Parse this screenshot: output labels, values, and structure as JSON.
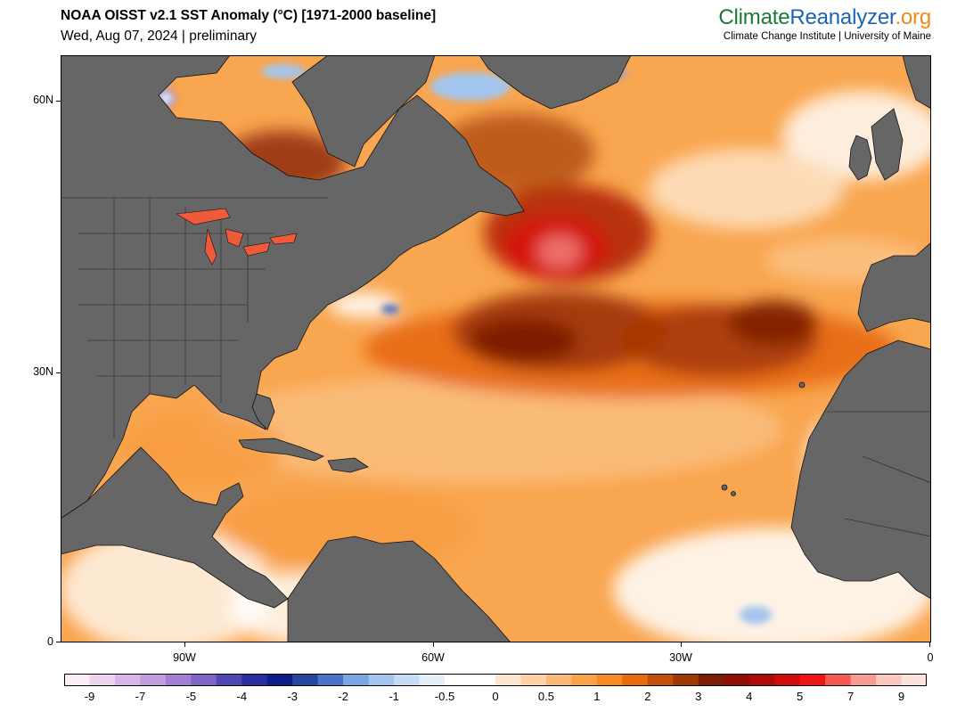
{
  "header": {
    "title": "NOAA OISST v2.1 SST Anomaly (°C) [1971-2000 baseline]",
    "subtitle": "Wed, Aug 07, 2024 | preliminary"
  },
  "brand": {
    "logo_part1": "Climate",
    "logo_part2": "Reanalyzer",
    "logo_part3": ".org",
    "tagline": "Climate Change Institute | University of Maine"
  },
  "map": {
    "region": "North Atlantic",
    "lat_labels": [
      "60N",
      "30N",
      "0"
    ],
    "lon_labels": [
      "90W",
      "60W",
      "30W",
      "0"
    ],
    "land_color": "#666666",
    "ocean_base_color": "#f7a04a"
  },
  "colorbar": {
    "labels": [
      "-9",
      "-7",
      "-5",
      "-4",
      "-3",
      "-2",
      "-1",
      "-0.5",
      "0",
      "0.5",
      "1",
      "2",
      "3",
      "4",
      "5",
      "7",
      "9"
    ],
    "colors": [
      "#fbeef6",
      "#ecd4ef",
      "#d8b7e8",
      "#c19ddf",
      "#a27fd3",
      "#7f64c6",
      "#5048b2",
      "#2b2f9e",
      "#0d1e8a",
      "#27469d",
      "#4a72c6",
      "#7aa6e3",
      "#a3c5ee",
      "#c6dcf4",
      "#e5effa",
      "#ffffff",
      "#ffffff",
      "#fde6cf",
      "#fcd2a6",
      "#fbb978",
      "#f9a24a",
      "#f78a24",
      "#ea6a10",
      "#c24f0a",
      "#9e3a08",
      "#7d1d05",
      "#8e0f08",
      "#ad0a0a",
      "#cf0c0c",
      "#ef1515",
      "#f55a50",
      "#f79a90",
      "#f9c8bf",
      "#fbe2db"
    ]
  }
}
